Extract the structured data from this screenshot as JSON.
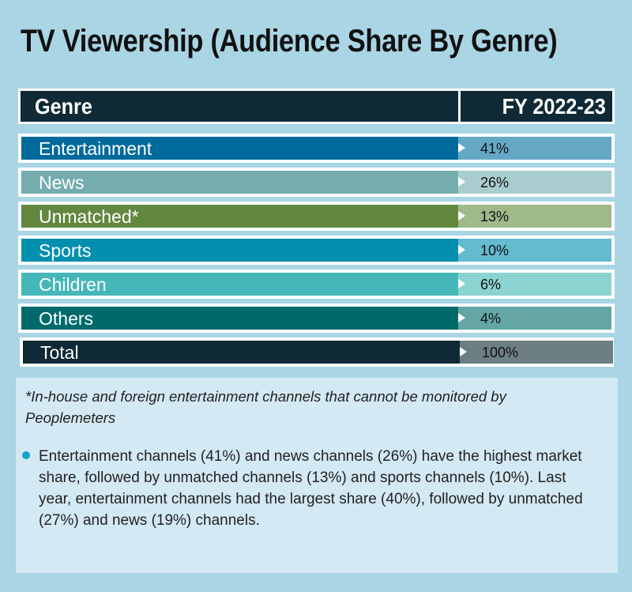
{
  "title": "TV Viewership (Audience Share By Genre)",
  "chart_data": {
    "type": "table",
    "columns": [
      "Genre",
      "FY 2022-23"
    ],
    "rows": [
      {
        "genre": "Entertainment",
        "share": "41%",
        "value": 41,
        "color": "#006a9c",
        "value_color": "#65a8c6"
      },
      {
        "genre": "News",
        "share": "26%",
        "value": 26,
        "color": "#75adae",
        "value_color": "#a9cdce"
      },
      {
        "genre": "Unmatched*",
        "share": "13%",
        "value": 13,
        "color": "#628840",
        "value_color": "#9fb98a"
      },
      {
        "genre": "Sports",
        "share": "10%",
        "value": 10,
        "color": "#058fae",
        "value_color": "#63bbd0"
      },
      {
        "genre": "Children",
        "share": "6%",
        "value": 6,
        "color": "#46b7b8",
        "value_color": "#8bd3d0"
      },
      {
        "genre": "Others",
        "share": "4%",
        "value": 4,
        "color": "#006a6a",
        "value_color": "#64a6a6"
      },
      {
        "genre": "Total",
        "share": "100%",
        "value": 100,
        "color": "#0f2a36",
        "value_color": "#6d7e84"
      }
    ]
  },
  "footnote": "*In-house and foreign entertainment channels that cannot be monitored by Peoplemeters",
  "bullet": "Entertainment channels (41%) and news channels (26%) have the highest market share, followed by unmatched channels (13%) and sports channels (10%). Last year, entertainment channels had the largest share (40%), followed by unmatched (27%) and news (19%) channels."
}
